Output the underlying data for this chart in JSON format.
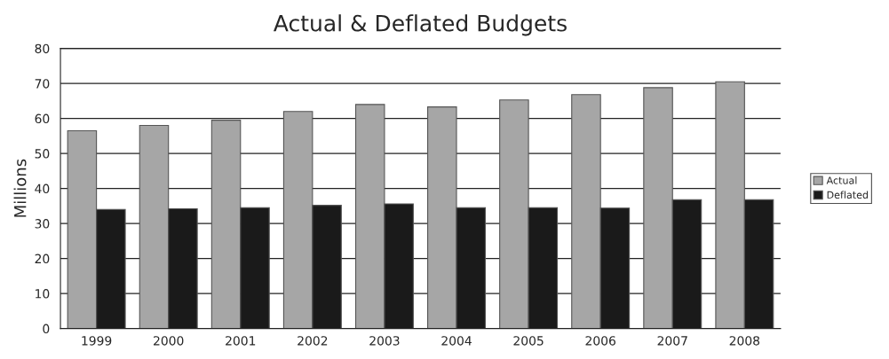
{
  "chart_data": {
    "type": "bar",
    "title": "Actual & Deflated Budgets",
    "ylabel": "Millions",
    "categories": [
      "1999",
      "2000",
      "2001",
      "2002",
      "2003",
      "2004",
      "2005",
      "2006",
      "2007",
      "2008"
    ],
    "series": [
      {
        "name": "Actual",
        "color": "#a6a6a6",
        "values": [
          56.5,
          58,
          59.5,
          62,
          64,
          63.3,
          65.3,
          66.8,
          68.8,
          70.5
        ]
      },
      {
        "name": "Deflated",
        "color": "#1a1a1a",
        "values": [
          34,
          34.2,
          34.5,
          35.2,
          35.6,
          34.5,
          34.5,
          34.4,
          36.8,
          36.8
        ]
      }
    ],
    "ylim": [
      0,
      80
    ],
    "yticks": [
      0,
      10,
      20,
      30,
      40,
      50,
      60,
      70,
      80
    ],
    "grid": "y",
    "legend": "right"
  }
}
